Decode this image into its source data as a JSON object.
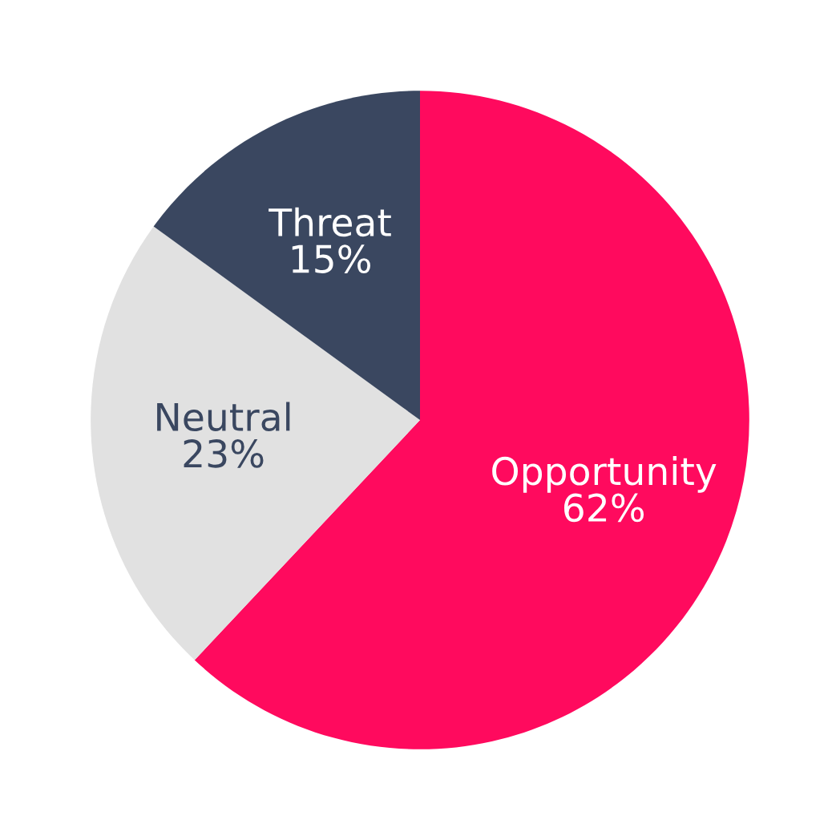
{
  "chart_data": {
    "type": "pie",
    "categories": [
      "Opportunity",
      "Neutral",
      "Threat"
    ],
    "values": [
      62,
      23,
      15
    ],
    "value_labels": [
      "62%",
      "23%",
      "15%"
    ],
    "colors": [
      "#ff0a5e",
      "#e1e1e1",
      "#3a4760"
    ]
  }
}
